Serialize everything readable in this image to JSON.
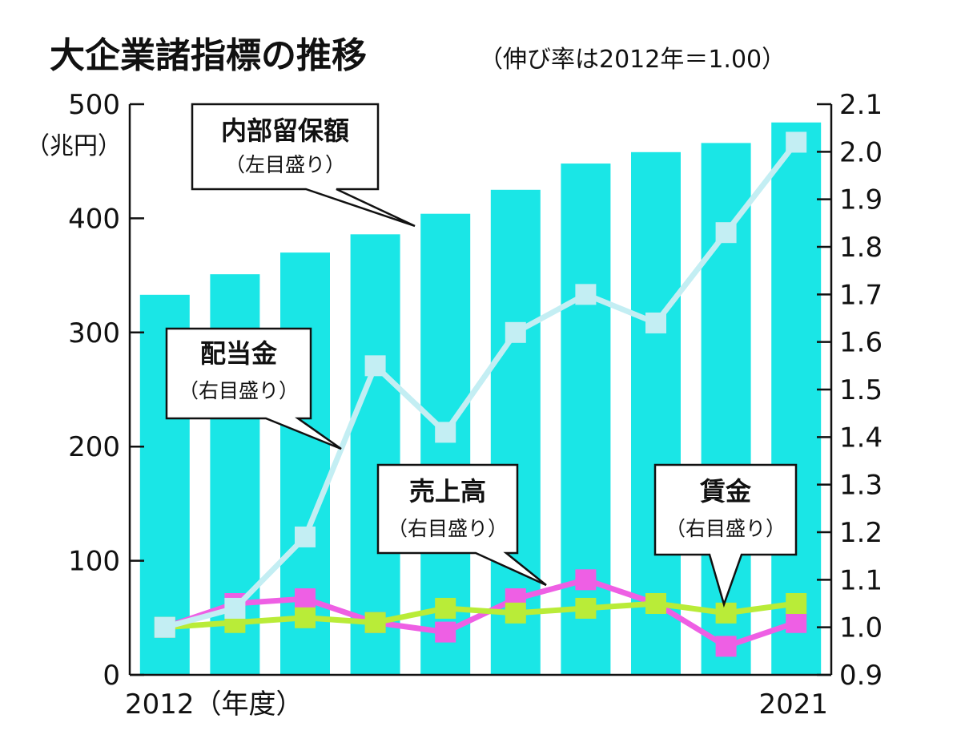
{
  "title": "大企業諸指標の推移",
  "subtitle": "（伸び率は2012年＝1.00）",
  "left_axis_unit": "（兆円）",
  "x_start_label": "2012（年度）",
  "x_end_label": "2021",
  "colors": {
    "bar": "#1ae6e6",
    "dividend": "#c3eef3",
    "sales": "#ee5fe4",
    "wages": "#b9ec38"
  },
  "callouts": {
    "retained": {
      "title": "内部留保額",
      "sub": "（左目盛り）"
    },
    "dividend": {
      "title": "配当金",
      "sub": "（右目盛り）"
    },
    "sales": {
      "title": "売上高",
      "sub": "（右目盛り）"
    },
    "wages": {
      "title": "賃金",
      "sub": "（右目盛り）"
    }
  },
  "chart_data": {
    "type": "bar",
    "title": "大企業諸指標の推移",
    "subtitle": "（伸び率は2012年＝1.00）",
    "categories": [
      "2012",
      "2013",
      "2014",
      "2015",
      "2016",
      "2017",
      "2018",
      "2019",
      "2020",
      "2021"
    ],
    "x_tick_labels": [
      "2012（年度）",
      "",
      "",
      "",
      "",
      "",
      "",
      "",
      "",
      "2021"
    ],
    "left_axis": {
      "unit": "（兆円）",
      "ylim": [
        0,
        500
      ],
      "ticks": [
        "0",
        "100",
        "200",
        "300",
        "400",
        "500"
      ]
    },
    "right_axis": {
      "ylim": [
        0.9,
        2.1
      ],
      "ticks": [
        "0.9",
        "1.0",
        "1.1",
        "1.2",
        "1.3",
        "1.4",
        "1.5",
        "1.6",
        "1.7",
        "1.8",
        "1.9",
        "2.0",
        "2.1"
      ]
    },
    "series": [
      {
        "name": "内部留保額",
        "axis": "left",
        "kind": "bar",
        "values": [
          333,
          351,
          370,
          386,
          404,
          425,
          448,
          458,
          466,
          484
        ]
      },
      {
        "name": "配当金",
        "axis": "right",
        "kind": "line",
        "values": [
          1.0,
          1.04,
          1.19,
          1.55,
          1.41,
          1.62,
          1.7,
          1.64,
          1.83,
          2.02
        ]
      },
      {
        "name": "売上高",
        "axis": "right",
        "kind": "line",
        "values": [
          1.0,
          1.05,
          1.06,
          1.01,
          0.99,
          1.06,
          1.1,
          1.05,
          0.96,
          1.01
        ]
      },
      {
        "name": "賃金",
        "axis": "right",
        "kind": "line",
        "values": [
          1.0,
          1.01,
          1.02,
          1.01,
          1.04,
          1.03,
          1.04,
          1.05,
          1.03,
          1.05
        ]
      }
    ],
    "grid": false
  }
}
